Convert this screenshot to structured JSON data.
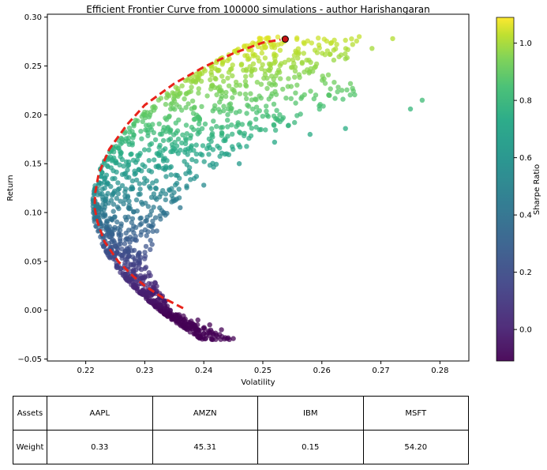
{
  "chart_data": {
    "type": "scatter",
    "title": "Efficient Frontier Curve from 100000 simulations - author Harishangaran",
    "xlabel": "Volatility",
    "ylabel": "Return",
    "xlim": [
      0.2135,
      0.2849
    ],
    "ylim": [
      -0.052,
      0.303
    ],
    "xticks": [
      "0.22",
      "0.23",
      "0.24",
      "0.25",
      "0.26",
      "0.27",
      "0.28"
    ],
    "yticks": [
      "−0.05",
      "0.00",
      "0.05",
      "0.10",
      "0.15",
      "0.20",
      "0.25",
      "0.30"
    ],
    "grid": false,
    "colorbar": {
      "label": "Sharpe Ratio",
      "range": [
        -0.11,
        1.09
      ],
      "ticks": [
        "0.0",
        "0.2",
        "0.4",
        "0.6",
        "0.8",
        "1.0"
      ],
      "colormap": "viridis"
    },
    "scatter_envelope": {
      "description_points_x_y": [
        [
          0.221,
          0.108
        ],
        [
          0.2225,
          0.165
        ],
        [
          0.228,
          0.215
        ],
        [
          0.24,
          0.258
        ],
        [
          0.254,
          0.278
        ],
        [
          0.265,
          0.274
        ],
        [
          0.272,
          0.278
        ],
        [
          0.265,
          0.262
        ],
        [
          0.263,
          0.232
        ],
        [
          0.272,
          0.225
        ],
        [
          0.277,
          0.215
        ],
        [
          0.26,
          0.19
        ],
        [
          0.254,
          0.182
        ],
        [
          0.245,
          0.163
        ],
        [
          0.235,
          0.12
        ],
        [
          0.23,
          0.05
        ],
        [
          0.236,
          0.01
        ],
        [
          0.243,
          -0.02
        ],
        [
          0.245,
          -0.029
        ],
        [
          0.234,
          0.0
        ],
        [
          0.225,
          0.04
        ]
      ]
    },
    "efficient_frontier": {
      "color": "#e8231b",
      "style": "dashed",
      "x": [
        0.2365,
        0.233,
        0.23,
        0.228,
        0.2255,
        0.2232,
        0.222,
        0.2215,
        0.2216,
        0.2222,
        0.224,
        0.227,
        0.23,
        0.235,
        0.24,
        0.245,
        0.25,
        0.253
      ],
      "y": [
        0.002,
        0.013,
        0.025,
        0.035,
        0.05,
        0.07,
        0.09,
        0.105,
        0.12,
        0.14,
        0.165,
        0.19,
        0.21,
        0.232,
        0.249,
        0.263,
        0.274,
        0.277
      ]
    },
    "optimal_point": {
      "x": 0.2538,
      "y": 0.2775,
      "color": "#c81414"
    }
  },
  "table": {
    "header_label": "Assets",
    "value_label": "Weight",
    "assets": [
      "AAPL",
      "AMZN",
      "IBM",
      "MSFT"
    ],
    "weights": [
      "0.33",
      "45.31",
      "0.15",
      "54.20"
    ]
  }
}
